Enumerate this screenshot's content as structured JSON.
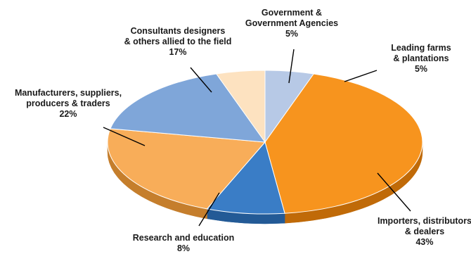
{
  "chart_data": {
    "type": "pie",
    "start_angle_deg": 0,
    "direction": "clockwise",
    "slices": [
      {
        "label_lines": [
          "Leading farms",
          "& plantations"
        ],
        "pct_label": "5%",
        "value": 5,
        "color": "#b7c9e6",
        "side": "#8da3c4"
      },
      {
        "label_lines": [
          "Importers, distributors",
          "& dealers"
        ],
        "pct_label": "43%",
        "value": 43,
        "color": "#f7941e",
        "side": "#c06a08"
      },
      {
        "label_lines": [
          "Research and education"
        ],
        "pct_label": "8%",
        "value": 8,
        "color": "#3a7dc6",
        "side": "#235a96"
      },
      {
        "label_lines": [
          "Manufacturers, suppliers,",
          "producers & traders"
        ],
        "pct_label": "22%",
        "value": 22,
        "color": "#f8ad59",
        "side": "#c57e2c"
      },
      {
        "label_lines": [
          "Consultants designers",
          "& others allied to the field"
        ],
        "pct_label": "17%",
        "value": 17,
        "color": "#7fa6d9",
        "side": "#5b80b3"
      },
      {
        "label_lines": [
          "Government &",
          "Government Agencies"
        ],
        "pct_label": "5%",
        "value": 5,
        "color": "#fde2c0",
        "side": "#d6b48c"
      }
    ]
  }
}
